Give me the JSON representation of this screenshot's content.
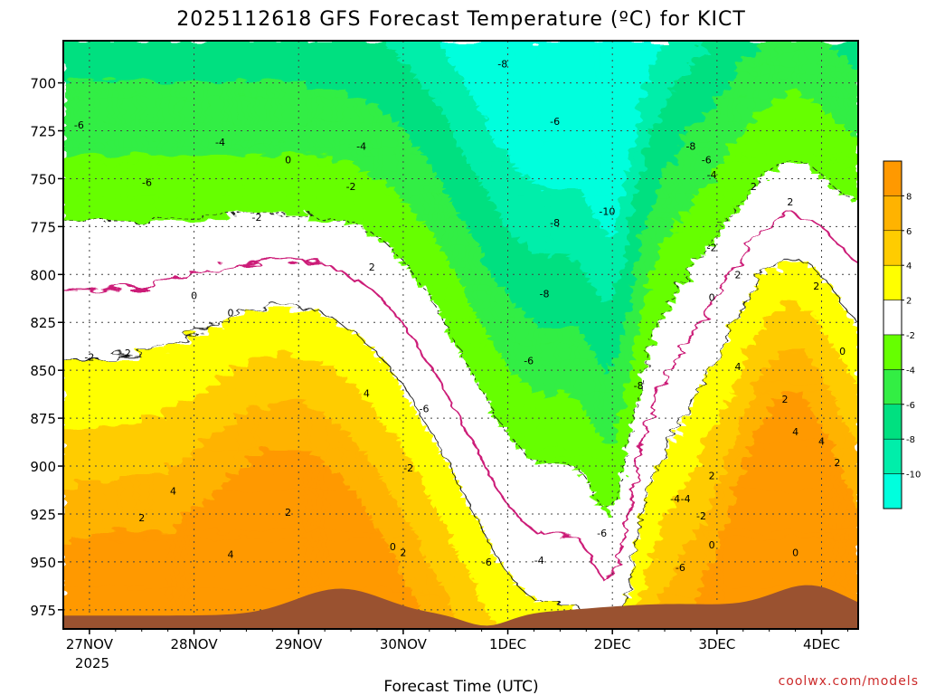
{
  "chart_data": {
    "type": "heatmap",
    "title": "2025112618 GFS Forecast Temperature (ºC) for KICT",
    "xlabel": "Forecast Time (UTC)",
    "ylabel": "",
    "x_ticks": [
      "27NOV",
      "28NOV",
      "29NOV",
      "30NOV",
      "1DEC",
      "2DEC",
      "3DEC",
      "4DEC"
    ],
    "x_year": "2025",
    "x_range_days": [
      26.75,
      34.35
    ],
    "y_ticks": [
      "700",
      "725",
      "750",
      "775",
      "800",
      "825",
      "850",
      "875",
      "900",
      "925",
      "950",
      "975"
    ],
    "y_range_hpa": [
      678,
      985
    ],
    "colorbar": {
      "ticks": [
        "8",
        "6",
        "4",
        "2",
        "-2",
        "-4",
        "-6",
        "-8",
        "-10"
      ],
      "bands": [
        {
          "range": "> 8",
          "color": "#ff9900"
        },
        {
          "range": "6 to 8",
          "color": "#ffb300"
        },
        {
          "range": "4 to 6",
          "color": "#ffcc00"
        },
        {
          "range": "2 to 4",
          "color": "#ffff00"
        },
        {
          "range": "-2 to 2",
          "color": "#ffffff"
        },
        {
          "range": "-4 to -2",
          "color": "#66ff00"
        },
        {
          "range": "-6 to -4",
          "color": "#33ee44"
        },
        {
          "range": "-8 to -6",
          "color": "#00e080"
        },
        {
          "range": "-10 to -8",
          "color": "#00eeaa"
        },
        {
          "range": "< -10",
          "color": "#00ffdd"
        }
      ]
    },
    "contour_labels": [
      {
        "text": "-6",
        "day": 26.9,
        "hpa": 722
      },
      {
        "text": "-4",
        "day": 28.25,
        "hpa": 731
      },
      {
        "text": "-6",
        "day": 27.55,
        "hpa": 752
      },
      {
        "text": "-2",
        "day": 28.6,
        "hpa": 770
      },
      {
        "text": "0",
        "day": 28.9,
        "hpa": 740
      },
      {
        "text": "-4",
        "day": 29.6,
        "hpa": 733
      },
      {
        "text": "-2",
        "day": 29.5,
        "hpa": 754
      },
      {
        "text": "-8",
        "day": 30.95,
        "hpa": 690
      },
      {
        "text": "-6",
        "day": 31.45,
        "hpa": 720
      },
      {
        "text": "-8",
        "day": 31.45,
        "hpa": 773
      },
      {
        "text": "-10",
        "day": 31.95,
        "hpa": 767
      },
      {
        "text": "-8",
        "day": 32.75,
        "hpa": 733
      },
      {
        "text": "-6",
        "day": 32.9,
        "hpa": 740
      },
      {
        "text": "-4",
        "day": 32.95,
        "hpa": 748
      },
      {
        "text": "-2",
        "day": 32.95,
        "hpa": 786
      },
      {
        "text": "2",
        "day": 33.35,
        "hpa": 754
      },
      {
        "text": "2",
        "day": 33.7,
        "hpa": 762
      },
      {
        "text": "2",
        "day": 33.95,
        "hpa": 806
      },
      {
        "text": "2",
        "day": 33.2,
        "hpa": 800
      },
      {
        "text": "0",
        "day": 32.95,
        "hpa": 812
      },
      {
        "text": "0",
        "day": 34.2,
        "hpa": 840
      },
      {
        "text": "-8",
        "day": 31.35,
        "hpa": 810
      },
      {
        "text": "-6",
        "day": 31.2,
        "hpa": 845
      },
      {
        "text": "-8",
        "day": 32.25,
        "hpa": 858
      },
      {
        "text": "-6",
        "day": 30.2,
        "hpa": 870
      },
      {
        "text": "0",
        "day": 28.0,
        "hpa": 811
      },
      {
        "text": "0",
        "day": 28.35,
        "hpa": 820
      },
      {
        "text": "2",
        "day": 29.7,
        "hpa": 796
      },
      {
        "text": "-2",
        "day": 27.0,
        "hpa": 843
      },
      {
        "text": "-2",
        "day": 27.35,
        "hpa": 841
      },
      {
        "text": "4",
        "day": 33.2,
        "hpa": 848
      },
      {
        "text": "2",
        "day": 33.65,
        "hpa": 865
      },
      {
        "text": "4",
        "day": 33.75,
        "hpa": 882
      },
      {
        "text": "4",
        "day": 34.0,
        "hpa": 887
      },
      {
        "text": "2",
        "day": 34.15,
        "hpa": 898
      },
      {
        "text": "2",
        "day": 32.95,
        "hpa": 905
      },
      {
        "text": "-4",
        "day": 32.7,
        "hpa": 917
      },
      {
        "text": "-2",
        "day": 32.85,
        "hpa": 926
      },
      {
        "text": "0",
        "day": 32.95,
        "hpa": 941
      },
      {
        "text": "0",
        "day": 33.75,
        "hpa": 945
      },
      {
        "text": "4",
        "day": 29.65,
        "hpa": 862
      },
      {
        "text": "-2",
        "day": 30.05,
        "hpa": 901
      },
      {
        "text": "2",
        "day": 28.9,
        "hpa": 924
      },
      {
        "text": "4",
        "day": 28.35,
        "hpa": 946
      },
      {
        "text": "4",
        "day": 27.8,
        "hpa": 913
      },
      {
        "text": "2",
        "day": 27.5,
        "hpa": 927
      },
      {
        "text": "0",
        "day": 29.9,
        "hpa": 942
      },
      {
        "text": "2",
        "day": 30.0,
        "hpa": 945
      },
      {
        "text": "-6",
        "day": 30.8,
        "hpa": 950
      },
      {
        "text": "-4",
        "day": 31.3,
        "hpa": 949
      },
      {
        "text": "-6",
        "day": 31.9,
        "hpa": 935
      },
      {
        "text": "-6",
        "day": 32.65,
        "hpa": 953
      },
      {
        "text": "-4",
        "day": 32.6,
        "hpa": 917
      }
    ]
  },
  "credit": "coolwx.com/models"
}
